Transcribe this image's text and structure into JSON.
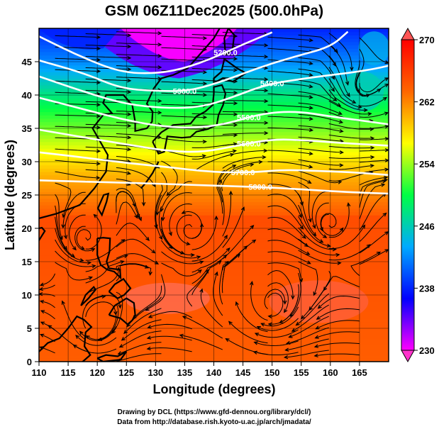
{
  "chart_data": {
    "type": "heatmap",
    "title": "GSM 06Z11Dec2025 (500.0hPa)",
    "xlabel": "Longitude (degrees)",
    "ylabel": "Latitude  (degrees)",
    "xlim": [
      110,
      170
    ],
    "ylim": [
      0,
      50
    ],
    "xticks": [
      "110",
      "115",
      "120",
      "125",
      "130",
      "135",
      "140",
      "145",
      "150",
      "155",
      "160",
      "165"
    ],
    "yticks": [
      "0",
      "5",
      "10",
      "15",
      "20",
      "25",
      "30",
      "35",
      "40",
      "45"
    ],
    "colorbar": {
      "range": [
        230,
        270
      ],
      "ticks": [
        "230",
        "238",
        "246",
        "254",
        "262",
        "270"
      ],
      "stops": [
        "#ff00ff",
        "#0000ff",
        "#00aaff",
        "#00ff44",
        "#ffff00",
        "#ff6600",
        "#ff0000"
      ]
    },
    "contours": [
      {
        "label": "5200.0",
        "points": [
          [
            110,
            48.8
          ],
          [
            117,
            45.8
          ],
          [
            124,
            43.4
          ],
          [
            130,
            43.2
          ],
          [
            135,
            44.0
          ],
          [
            140,
            45.6
          ],
          [
            145,
            47.6
          ],
          [
            150,
            49.4
          ]
        ]
      },
      {
        "label": "5300.0",
        "points": [
          [
            110,
            45.2
          ],
          [
            118,
            43.2
          ],
          [
            124,
            41.0
          ],
          [
            130,
            40.6
          ],
          [
            136,
            40.6
          ],
          [
            142,
            42.2
          ],
          [
            148,
            44.2
          ],
          [
            154,
            45.8
          ],
          [
            160,
            47.2
          ],
          [
            163,
            49.5
          ]
        ]
      },
      {
        "label": "5400.0",
        "points": [
          [
            110,
            42.8
          ],
          [
            118,
            40.4
          ],
          [
            125,
            38.6
          ],
          [
            132,
            38.0
          ],
          [
            138,
            38.2
          ],
          [
            143,
            39.6
          ],
          [
            149,
            41.6
          ],
          [
            155,
            42.4
          ],
          [
            160,
            43.0
          ],
          [
            164,
            43.4
          ],
          [
            168,
            44.0
          ],
          [
            170,
            44.4
          ]
        ]
      },
      {
        "label": "5500.0",
        "points": [
          [
            110,
            39.6
          ],
          [
            118,
            37.8
          ],
          [
            124,
            36.4
          ],
          [
            130,
            35.4
          ],
          [
            136,
            35.0
          ],
          [
            142,
            35.6
          ],
          [
            148,
            37.2
          ],
          [
            154,
            37.6
          ],
          [
            160,
            36.8
          ],
          [
            165,
            36.2
          ],
          [
            170,
            35.6
          ]
        ]
      },
      {
        "label": "5600.0",
        "points": [
          [
            110,
            34.8
          ],
          [
            118,
            33.6
          ],
          [
            125,
            32.6
          ],
          [
            132,
            31.6
          ],
          [
            138,
            31.4
          ],
          [
            144,
            32.4
          ],
          [
            150,
            33.4
          ],
          [
            156,
            33.2
          ],
          [
            162,
            32.8
          ],
          [
            170,
            32.4
          ]
        ]
      },
      {
        "label": "5700.0",
        "points": [
          [
            110,
            31.4
          ],
          [
            118,
            30.6
          ],
          [
            125,
            29.8
          ],
          [
            132,
            29.2
          ],
          [
            140,
            28.4
          ],
          [
            147,
            28.4
          ],
          [
            152,
            28.8
          ],
          [
            158,
            28.6
          ],
          [
            164,
            28.4
          ],
          [
            170,
            28.0
          ]
        ]
      },
      {
        "label": "5800.0",
        "points": [
          [
            110,
            27.2
          ],
          [
            118,
            27.0
          ],
          [
            126,
            26.8
          ],
          [
            134,
            26.6
          ],
          [
            140,
            26.4
          ],
          [
            148,
            26.2
          ],
          [
            156,
            25.8
          ],
          [
            164,
            25.4
          ],
          [
            170,
            25.2
          ]
        ]
      }
    ],
    "credits": {
      "line1": "Drawing by DCL (https://www.gfd-dennou.org/library/dcl/)",
      "line2": "Data from http://database.rish.kyoto-u.ac.jp/arch/jmadata/"
    }
  }
}
